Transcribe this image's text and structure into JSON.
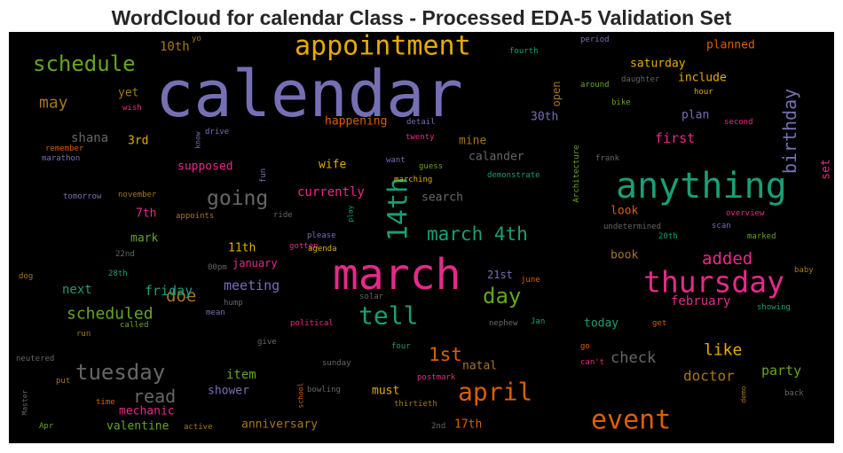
{
  "chart_data": {
    "type": "wordcloud",
    "title": "WordCloud for calendar Class - Processed EDA-5 Validation Set",
    "background": "#000000",
    "colormap": "Dark2",
    "words": [
      {
        "text": "calendar",
        "color": "#7570b3",
        "size": 72
      },
      {
        "text": "march",
        "color": "#e7298a",
        "size": 48
      },
      {
        "text": "anything",
        "color": "#1b9e77",
        "size": 40
      },
      {
        "text": "thursday",
        "color": "#e7298a",
        "size": 33
      },
      {
        "text": "appointment",
        "color": "#e6ab02",
        "size": 30
      },
      {
        "text": "event",
        "color": "#d95f02",
        "size": 30
      },
      {
        "text": "14th",
        "color": "#1b9e77",
        "size": 30
      },
      {
        "text": "april",
        "color": "#d95f02",
        "size": 28
      },
      {
        "text": "tell",
        "color": "#1b9e77",
        "size": 28
      },
      {
        "text": "schedule",
        "color": "#66a61e",
        "size": 24
      },
      {
        "text": "tuesday",
        "color": "#666666",
        "size": 24
      },
      {
        "text": "day",
        "color": "#66a61e",
        "size": 24
      },
      {
        "text": "going",
        "color": "#666666",
        "size": 23
      },
      {
        "text": "march 4th",
        "color": "#1b9e77",
        "size": 21
      },
      {
        "text": "birthday",
        "color": "#7570b3",
        "size": 20
      },
      {
        "text": "1st",
        "color": "#d95f02",
        "size": 21
      },
      {
        "text": "read",
        "color": "#666666",
        "size": 20
      },
      {
        "text": "doe",
        "color": "#a6761d",
        "size": 19
      },
      {
        "text": "added",
        "color": "#e7298a",
        "size": 19
      },
      {
        "text": "like",
        "color": "#e6ab02",
        "size": 18
      },
      {
        "text": "scheduled",
        "color": "#66a61e",
        "size": 18
      },
      {
        "text": "may",
        "color": "#a6761d",
        "size": 18
      },
      {
        "text": "check",
        "color": "#666666",
        "size": 17
      },
      {
        "text": "doctor",
        "color": "#a6761d",
        "size": 16
      },
      {
        "text": "meeting",
        "color": "#7570b3",
        "size": 15
      },
      {
        "text": "friday",
        "color": "#1b9e77",
        "size": 15
      },
      {
        "text": "shana",
        "color": "#666666",
        "size": 14
      },
      {
        "text": "party",
        "color": "#66a61e",
        "size": 15
      },
      {
        "text": "first",
        "color": "#e7298a",
        "size": 15
      },
      {
        "text": "currently",
        "color": "#e7298a",
        "size": 14
      },
      {
        "text": "february",
        "color": "#e7298a",
        "size": 14
      },
      {
        "text": "item",
        "color": "#66a61e",
        "size": 14
      },
      {
        "text": "next",
        "color": "#1b9e77",
        "size": 14
      },
      {
        "text": "10th",
        "color": "#a6761d",
        "size": 14
      },
      {
        "text": "search",
        "color": "#666666",
        "size": 13
      },
      {
        "text": "mechanic",
        "color": "#e7298a",
        "size": 13
      },
      {
        "text": "valentine",
        "color": "#66a61e",
        "size": 13
      },
      {
        "text": "anniversary",
        "color": "#a6761d",
        "size": 13
      },
      {
        "text": "shower",
        "color": "#7570b3",
        "size": 13
      },
      {
        "text": "must",
        "color": "#e6ab02",
        "size": 13
      },
      {
        "text": "natal",
        "color": "#a6761d",
        "size": 13
      },
      {
        "text": "17th",
        "color": "#d95f02",
        "size": 13
      },
      {
        "text": "11th",
        "color": "#e6ab02",
        "size": 13
      },
      {
        "text": "7th",
        "color": "#e7298a",
        "size": 13
      },
      {
        "text": "mark",
        "color": "#66a61e",
        "size": 13
      },
      {
        "text": "3rd",
        "color": "#e6ab02",
        "size": 13
      },
      {
        "text": "yet",
        "color": "#a6761d",
        "size": 13
      },
      {
        "text": "supposed",
        "color": "#e7298a",
        "size": 13
      },
      {
        "text": "wife",
        "color": "#e6ab02",
        "size": 13
      },
      {
        "text": "mine",
        "color": "#a6761d",
        "size": 13
      },
      {
        "text": "calander",
        "color": "#666666",
        "size": 13
      },
      {
        "text": "happening",
        "color": "#d95f02",
        "size": 13
      },
      {
        "text": "30th",
        "color": "#7570b3",
        "size": 13
      },
      {
        "text": "plan",
        "color": "#7570b3",
        "size": 13
      },
      {
        "text": "include",
        "color": "#e6ab02",
        "size": 13
      },
      {
        "text": "saturday",
        "color": "#e6ab02",
        "size": 13
      },
      {
        "text": "planned",
        "color": "#d95f02",
        "size": 13
      },
      {
        "text": "open",
        "color": "#a6761d",
        "size": 12
      },
      {
        "text": "look",
        "color": "#d95f02",
        "size": 13
      },
      {
        "text": "book",
        "color": "#a6761d",
        "size": 13
      },
      {
        "text": "today",
        "color": "#1b9e77",
        "size": 13
      },
      {
        "text": "january",
        "color": "#e7298a",
        "size": 12
      },
      {
        "text": "21st",
        "color": "#7570b3",
        "size": 12
      },
      {
        "text": "set",
        "color": "#e7298a",
        "size": 13
      },
      {
        "text": "fourth",
        "color": "#1b9e77",
        "size": 9
      },
      {
        "text": "period",
        "color": "#7570b3",
        "size": 9
      },
      {
        "text": "daughter",
        "color": "#666666",
        "size": 9
      },
      {
        "text": "around",
        "color": "#66a61e",
        "size": 9
      },
      {
        "text": "hour",
        "color": "#e6ab02",
        "size": 9
      },
      {
        "text": "bike",
        "color": "#66a61e",
        "size": 9
      },
      {
        "text": "second",
        "color": "#e7298a",
        "size": 9
      },
      {
        "text": "detail",
        "color": "#7570b3",
        "size": 9
      },
      {
        "text": "twenty",
        "color": "#e7298a",
        "size": 9
      },
      {
        "text": "know",
        "color": "#7570b3",
        "size": 8
      },
      {
        "text": "drive",
        "color": "#7570b3",
        "size": 9
      },
      {
        "text": "wish",
        "color": "#e7298a",
        "size": 9
      },
      {
        "text": "yo",
        "color": "#a6761d",
        "size": 9
      },
      {
        "text": "remember",
        "color": "#d95f02",
        "size": 9
      },
      {
        "text": "marathon",
        "color": "#7570b3",
        "size": 9
      },
      {
        "text": "fun",
        "color": "#7570b3",
        "size": 9
      },
      {
        "text": "want",
        "color": "#7570b3",
        "size": 9
      },
      {
        "text": "guess",
        "color": "#66a61e",
        "size": 9
      },
      {
        "text": "marching",
        "color": "#e6ab02",
        "size": 9
      },
      {
        "text": "demonstrate",
        "color": "#1b9e77",
        "size": 9
      },
      {
        "text": "frank",
        "color": "#666666",
        "size": 9
      },
      {
        "text": "Architecture",
        "color": "#66a61e",
        "size": 9
      },
      {
        "text": "tomorrow",
        "color": "#7570b3",
        "size": 9
      },
      {
        "text": "november",
        "color": "#a6761d",
        "size": 9
      },
      {
        "text": "ride",
        "color": "#666666",
        "size": 9
      },
      {
        "text": "play",
        "color": "#1b9e77",
        "size": 8
      },
      {
        "text": "appoints",
        "color": "#a6761d",
        "size": 9
      },
      {
        "text": "overview",
        "color": "#e7298a",
        "size": 9
      },
      {
        "text": "undetermined",
        "color": "#666666",
        "size": 9
      },
      {
        "text": "scan",
        "color": "#7570b3",
        "size": 9
      },
      {
        "text": "20th",
        "color": "#1b9e77",
        "size": 9
      },
      {
        "text": "marked",
        "color": "#66a61e",
        "size": 9
      },
      {
        "text": "please",
        "color": "#7570b3",
        "size": 9
      },
      {
        "text": "gotten",
        "color": "#e7298a",
        "size": 9
      },
      {
        "text": "agenda",
        "color": "#e6ab02",
        "size": 9
      },
      {
        "text": "22nd",
        "color": "#666666",
        "size": 9
      },
      {
        "text": "00pm",
        "color": "#666666",
        "size": 9
      },
      {
        "text": "28th",
        "color": "#1b9e77",
        "size": 9
      },
      {
        "text": "dog",
        "color": "#a6761d",
        "size": 9
      },
      {
        "text": "june",
        "color": "#d95f02",
        "size": 9
      },
      {
        "text": "baby",
        "color": "#a6761d",
        "size": 9
      },
      {
        "text": "solar",
        "color": "#666666",
        "size": 9
      },
      {
        "text": "hump",
        "color": "#666666",
        "size": 9
      },
      {
        "text": "mean",
        "color": "#7570b3",
        "size": 9
      },
      {
        "text": "showing",
        "color": "#1b9e77",
        "size": 9
      },
      {
        "text": "called",
        "color": "#66a61e",
        "size": 9
      },
      {
        "text": "political",
        "color": "#e7298a",
        "size": 9
      },
      {
        "text": "nephew",
        "color": "#666666",
        "size": 9
      },
      {
        "text": "Jan",
        "color": "#1b9e77",
        "size": 9
      },
      {
        "text": "get",
        "color": "#d95f02",
        "size": 9
      },
      {
        "text": "run",
        "color": "#a6761d",
        "size": 9
      },
      {
        "text": "give",
        "color": "#666666",
        "size": 9
      },
      {
        "text": "four",
        "color": "#1b9e77",
        "size": 9
      },
      {
        "text": "go",
        "color": "#d95f02",
        "size": 9
      },
      {
        "text": "neutered",
        "color": "#666666",
        "size": 9
      },
      {
        "text": "sunday",
        "color": "#666666",
        "size": 9
      },
      {
        "text": "can't",
        "color": "#e7298a",
        "size": 9
      },
      {
        "text": "put",
        "color": "#a6761d",
        "size": 9
      },
      {
        "text": "school",
        "color": "#d95f02",
        "size": 8
      },
      {
        "text": "bowling",
        "color": "#666666",
        "size": 9
      },
      {
        "text": "postmark",
        "color": "#e7298a",
        "size": 9
      },
      {
        "text": "thirtieth",
        "color": "#a6761d",
        "size": 9
      },
      {
        "text": "time",
        "color": "#d95f02",
        "size": 9
      },
      {
        "text": "demo",
        "color": "#a6761d",
        "size": 8
      },
      {
        "text": "back",
        "color": "#666666",
        "size": 9
      },
      {
        "text": "Master",
        "color": "#666666",
        "size": 8
      },
      {
        "text": "Apr",
        "color": "#66a61e",
        "size": 9
      },
      {
        "text": "active",
        "color": "#a6761d",
        "size": 9
      },
      {
        "text": "2nd",
        "color": "#666666",
        "size": 9
      }
    ]
  }
}
